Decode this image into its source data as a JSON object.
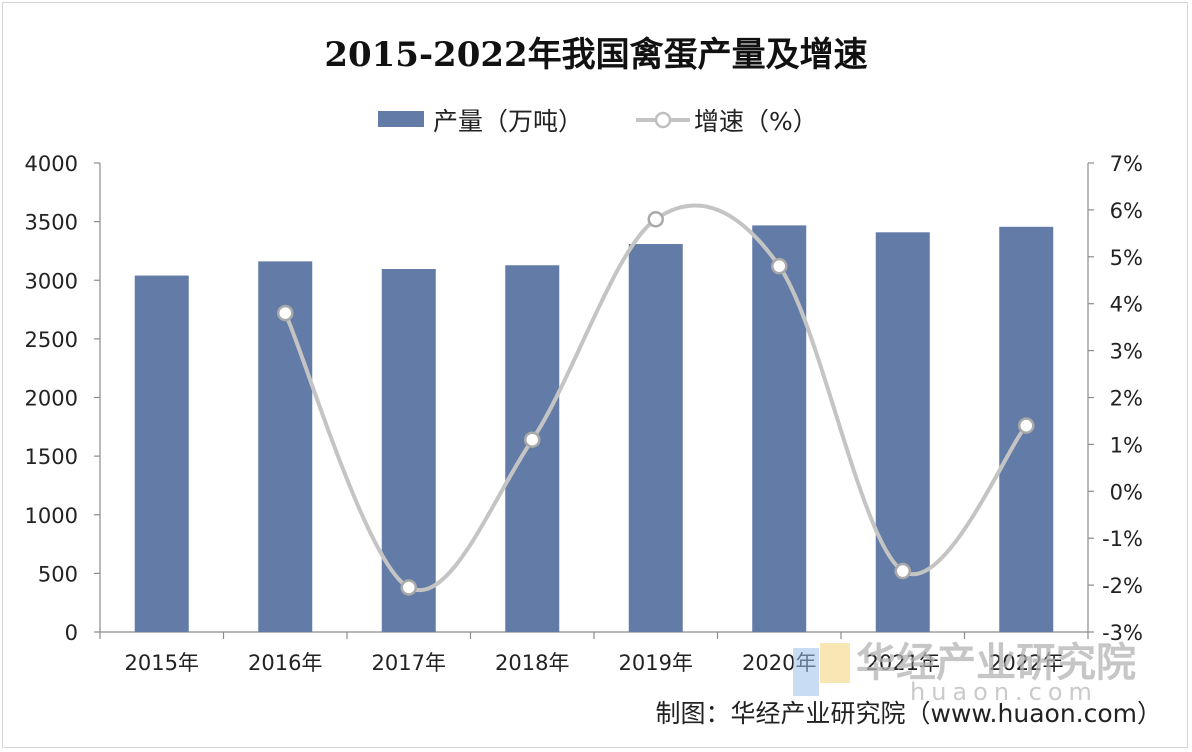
{
  "chart_data": {
    "type": "bar",
    "title": "2015-2022年我国禽蛋产量及增速",
    "categories": [
      "2015年",
      "2016年",
      "2017年",
      "2018年",
      "2019年",
      "2020年",
      "2021年",
      "2022年"
    ],
    "series": [
      {
        "name": "产量（万吨）",
        "type": "bar",
        "axis": "left",
        "color": "#637ca7",
        "values": [
          3040,
          3161,
          3096,
          3128,
          3309,
          3468,
          3409,
          3456
        ]
      },
      {
        "name": "增速（%）",
        "type": "line",
        "axis": "right",
        "color": "#c4c4c4",
        "values": [
          null,
          3.8,
          -2.05,
          1.1,
          5.8,
          4.8,
          -1.7,
          1.4
        ]
      }
    ],
    "y_left": {
      "min": 0,
      "max": 4000,
      "step": 500
    },
    "y_right": {
      "min": -3,
      "max": 7,
      "step": 1,
      "unit": "%"
    },
    "y_left_ticks": [
      "0",
      "500",
      "1000",
      "1500",
      "2000",
      "2500",
      "3000",
      "3500",
      "4000"
    ],
    "y_right_ticks": [
      "-3%",
      "-2%",
      "-1%",
      "0%",
      "1%",
      "2%",
      "3%",
      "4%",
      "5%",
      "6%",
      "7%"
    ],
    "legend": "top-center",
    "grid": false
  },
  "credit": "制图：华经产业研究院（www.huaon.com）",
  "watermark": {
    "name": "华经产业研究院",
    "url": "huaon.com"
  }
}
